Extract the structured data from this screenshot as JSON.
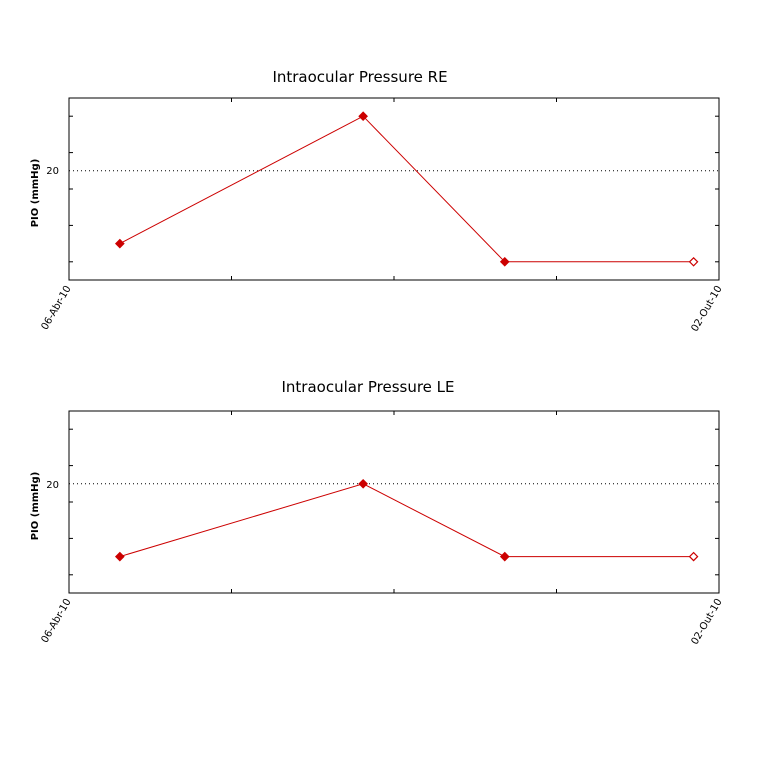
{
  "chart_data": [
    {
      "type": "line",
      "title": "Intraocular Pressure RE",
      "ylabel": "PIO (mmHg)",
      "xlim": [
        "06-Abr-10",
        "02-Out-10"
      ],
      "x_tick_labels": [
        "06-Abr-10",
        "02-Out-10"
      ],
      "ylim": [
        14,
        24
      ],
      "y_tick_labels": [
        "20"
      ],
      "reference_line": 20,
      "grid": false,
      "line_color": "#cc0000",
      "marker_color": "#cc0000",
      "series": [
        {
          "x": [
            "2010-04-20",
            "2010-06-26",
            "2010-08-04",
            "2010-09-25"
          ],
          "y": [
            16,
            23,
            15,
            15
          ],
          "marker": [
            "filled",
            "filled",
            "filled",
            "hollow"
          ]
        }
      ]
    },
    {
      "type": "line",
      "title": "Intraocular Pressure LE",
      "ylabel": "PIO (mmHg)",
      "xlim": [
        "06-Abr-10",
        "02-Out-10"
      ],
      "x_tick_labels": [
        "06-Abr-10",
        "02-Out-10"
      ],
      "ylim": [
        14,
        24
      ],
      "y_tick_labels": [
        "20"
      ],
      "reference_line": 20,
      "grid": false,
      "line_color": "#cc0000",
      "marker_color": "#cc0000",
      "series": [
        {
          "x": [
            "2010-04-20",
            "2010-06-26",
            "2010-08-04",
            "2010-09-25"
          ],
          "y": [
            16,
            20,
            16,
            16
          ],
          "marker": [
            "filled",
            "filled",
            "filled",
            "hollow"
          ]
        }
      ]
    }
  ]
}
